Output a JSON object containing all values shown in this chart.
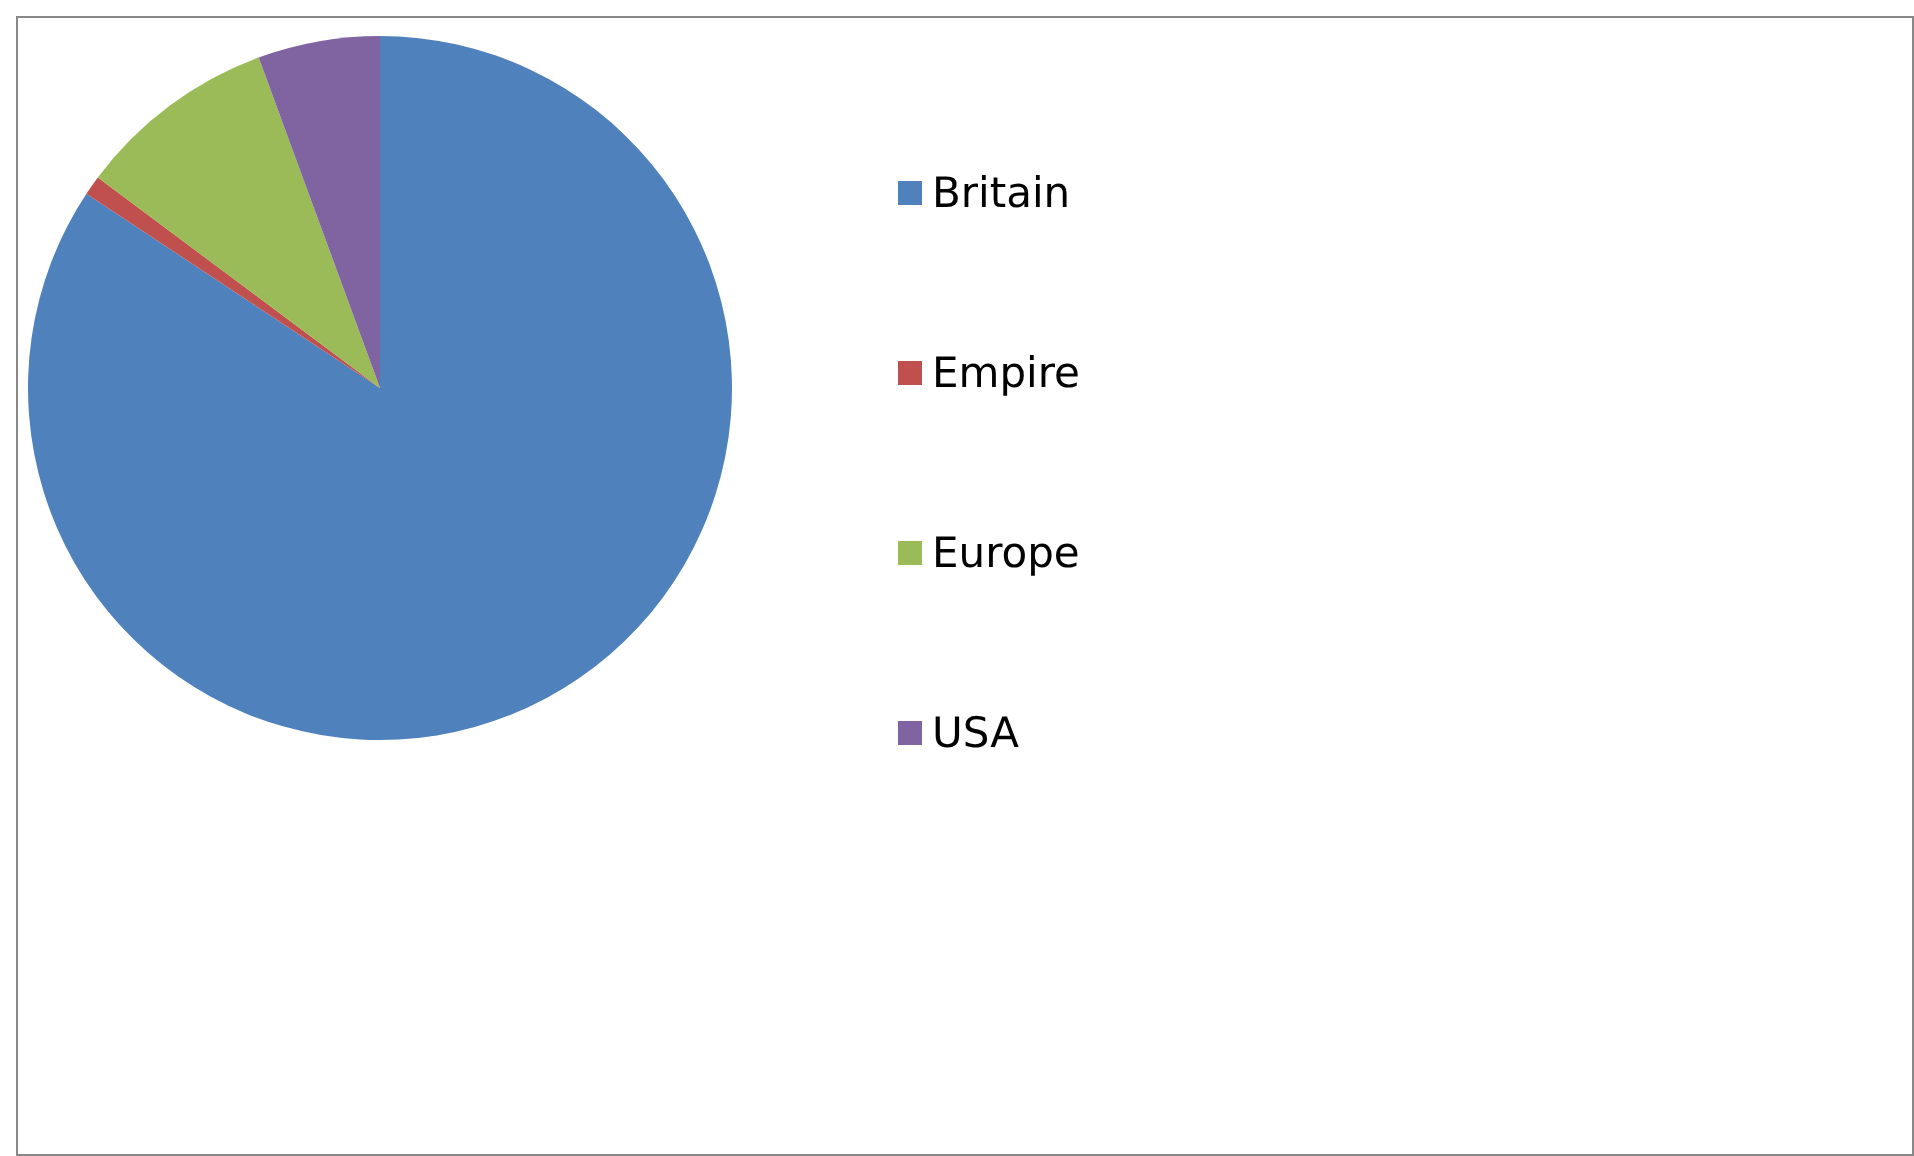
{
  "chart_data": {
    "type": "pie",
    "categories": [
      "Britain",
      "Empire",
      "Europe",
      "USA"
    ],
    "values": [
      84.3,
      0.9,
      9.2,
      5.6
    ],
    "colors": [
      "#4f81bd",
      "#c0504d",
      "#9bbb59",
      "#8064a2"
    ],
    "legend": "right"
  }
}
